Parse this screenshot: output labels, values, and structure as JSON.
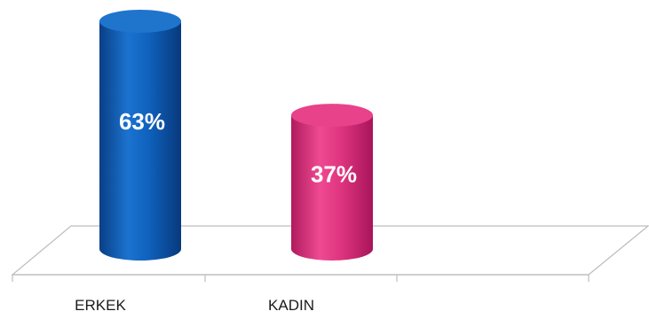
{
  "chart_data": {
    "type": "bar",
    "style": "3d-cylinder",
    "categories": [
      "ERKEK",
      "KADIN"
    ],
    "values": [
      63,
      37
    ],
    "value_labels": [
      "63%",
      "37%"
    ],
    "series": [
      {
        "values": [
          63,
          37
        ]
      }
    ],
    "colors": [
      "#0d5cb6",
      "#e5337f"
    ],
    "ylim": [
      0,
      63
    ],
    "grid": false,
    "legend": "none"
  }
}
